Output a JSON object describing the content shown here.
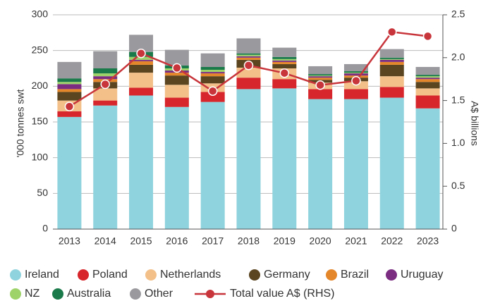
{
  "chart_data": {
    "type": "bar",
    "stacked": true,
    "categories": [
      "2013",
      "2014",
      "2015",
      "2016",
      "2017",
      "2018",
      "2019",
      "2020",
      "2021",
      "2022",
      "2023"
    ],
    "ylabel": "'000 tonnes swt",
    "y2label": "A$ billions",
    "ylim": [
      0,
      300
    ],
    "yticks": [
      0,
      50,
      100,
      150,
      200,
      250,
      300
    ],
    "y2lim": [
      0,
      2.5
    ],
    "y2ticks": [
      0,
      0.5,
      {
        "value": 1,
        "label": "1.0"
      },
      1.5,
      {
        "value": 2,
        "label": "2.0"
      },
      2.5
    ],
    "grid": true,
    "legend": "bottom",
    "series": [
      {
        "name": "Ireland",
        "color": "#8fd3de",
        "values": [
          157,
          173,
          187,
          171,
          178,
          196,
          197,
          182,
          182,
          184,
          169
        ]
      },
      {
        "name": "Poland",
        "color": "#d7262c",
        "values": [
          8,
          7,
          11,
          13,
          14,
          16,
          13,
          14,
          14,
          15,
          18
        ]
      },
      {
        "name": "Netherlands",
        "color": "#f3c089",
        "values": [
          15,
          17,
          21,
          18,
          12,
          14,
          15,
          9,
          11,
          15,
          10
        ]
      },
      {
        "name": "Germany",
        "color": "#5a4520",
        "values": [
          12,
          9,
          11,
          13,
          10,
          11,
          6,
          4,
          5,
          16,
          9
        ]
      },
      {
        "name": "Brazil",
        "color": "#e4862a",
        "values": [
          4,
          4,
          5,
          4,
          4,
          3,
          3,
          3,
          3,
          4,
          4
        ]
      },
      {
        "name": "Uruguay",
        "color": "#7b2d82",
        "values": [
          7,
          4,
          2,
          3,
          2,
          2,
          2,
          2,
          3,
          3,
          2
        ]
      },
      {
        "name": "NZ",
        "color": "#9ed36a",
        "values": [
          3,
          4,
          4,
          3,
          3,
          2,
          2,
          1,
          1,
          1,
          2
        ]
      },
      {
        "name": "Australia",
        "color": "#1b7a4a",
        "values": [
          5,
          7,
          7,
          4,
          4,
          2,
          3,
          2,
          2,
          2,
          2
        ]
      },
      {
        "name": "Other",
        "color": "#9a9a9e",
        "values": [
          23,
          24,
          24,
          22,
          19,
          21,
          13,
          11,
          10,
          12,
          11
        ]
      },
      {
        "name": "Total value A$ (RHS)",
        "type": "line",
        "axis": "y2",
        "color": "#c8353b",
        "values": [
          1.43,
          1.69,
          2.05,
          1.88,
          1.61,
          1.91,
          1.82,
          1.68,
          1.73,
          2.3,
          2.25
        ]
      }
    ]
  }
}
